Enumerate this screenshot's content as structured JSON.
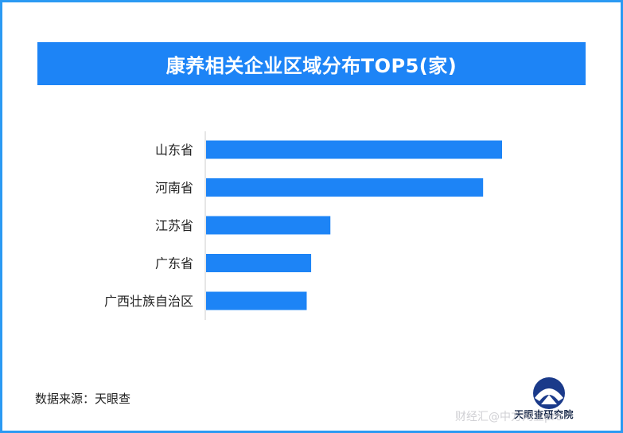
{
  "chart_data": {
    "type": "bar",
    "orientation": "horizontal",
    "title": "康养相关企业区域分布TOP5(家)",
    "categories": [
      "山东省",
      "河南省",
      "江苏省",
      "广东省",
      "广西壮族自治区"
    ],
    "values": [
      100,
      93.6,
      42,
      35.5,
      34
    ],
    "colors": {
      "bar": "#1d84f6",
      "banner": "#1d84f6",
      "frame": "#2b9af3"
    },
    "grid": false
  },
  "footer": {
    "source": "数据来源：天眼查",
    "logo_text": "天眼查研究院",
    "watermark": "财经汇@中方网业pro"
  }
}
